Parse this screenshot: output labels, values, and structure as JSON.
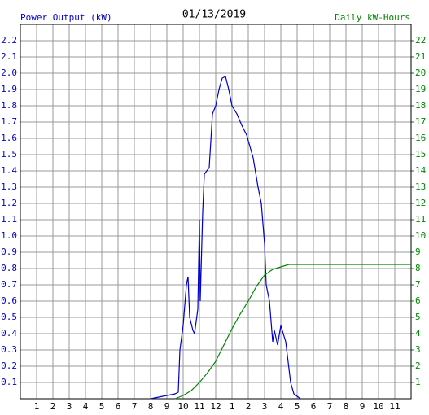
{
  "chart_data": {
    "type": "line",
    "title": "01/13/2019",
    "xlim": [
      0,
      24
    ],
    "xticks": [
      1,
      2,
      3,
      4,
      5,
      6,
      7,
      8,
      9,
      10,
      11,
      12,
      {
        "value": 13,
        "label": "1"
      },
      {
        "value": 14,
        "label": "2"
      },
      {
        "value": 15,
        "label": "3"
      },
      {
        "value": 16,
        "label": "4"
      },
      {
        "value": 17,
        "label": "5"
      },
      {
        "value": 18,
        "label": "6"
      },
      {
        "value": 19,
        "label": "7"
      },
      {
        "value": 20,
        "label": "8"
      },
      {
        "value": 21,
        "label": "9"
      },
      {
        "value": 22,
        "label": "10"
      },
      {
        "value": 23,
        "label": "11"
      }
    ],
    "ylim": [
      0,
      2.3
    ],
    "yticks": [
      0.1,
      0.2,
      0.3,
      0.4,
      0.5,
      0.6,
      0.7,
      0.8,
      0.9,
      {
        "value": 1,
        "label": "1.0"
      },
      1.1,
      1.2,
      1.3,
      1.4,
      1.5,
      1.6,
      1.7,
      1.8,
      1.9,
      {
        "value": 2,
        "label": "2.0"
      },
      2.1,
      2.2
    ],
    "y2lim": [
      0,
      23
    ],
    "y2ticks": [
      1,
      2,
      3,
      4,
      5,
      6,
      7,
      8,
      9,
      10,
      11,
      12,
      13,
      14,
      15,
      16,
      17,
      18,
      19,
      20,
      21,
      22
    ],
    "grid": true,
    "series": [
      {
        "name": "Power Output (kW)",
        "color": "#0000cc",
        "x": [
          8.0,
          8.5,
          9.0,
          9.5,
          9.7,
          9.8,
          10.0,
          10.2,
          10.3,
          10.4,
          10.6,
          10.7,
          10.9,
          11.0,
          11.05,
          11.2,
          11.3,
          11.6,
          11.8,
          12.0,
          12.2,
          12.4,
          12.6,
          12.8,
          13.0,
          13.3,
          13.6,
          13.9,
          14.1,
          14.3,
          14.6,
          14.8,
          15.0,
          15.1,
          15.3,
          15.5,
          15.6,
          15.8,
          16.0,
          16.3,
          16.6,
          16.8,
          17.2
        ],
        "values": [
          0,
          0.01,
          0.02,
          0.03,
          0.04,
          0.3,
          0.45,
          0.7,
          0.75,
          0.5,
          0.42,
          0.4,
          0.55,
          1.1,
          0.6,
          1.15,
          1.38,
          1.42,
          1.75,
          1.8,
          1.9,
          1.97,
          1.98,
          1.9,
          1.8,
          1.75,
          1.68,
          1.62,
          1.55,
          1.48,
          1.3,
          1.2,
          0.95,
          0.7,
          0.6,
          0.35,
          0.42,
          0.33,
          0.45,
          0.35,
          0.1,
          0.03,
          0
        ]
      },
      {
        "name": "Daily kW-Hours",
        "color": "#008800",
        "axis": "y2",
        "x": [
          9.5,
          10,
          10.5,
          11,
          11.5,
          12,
          12.5,
          13,
          13.5,
          14,
          14.5,
          15,
          15.5,
          16,
          16.5,
          24
        ],
        "values": [
          0,
          0.2,
          0.5,
          1.0,
          1.6,
          2.3,
          3.3,
          4.3,
          5.2,
          6.0,
          6.9,
          7.6,
          7.95,
          8.1,
          8.25,
          8.25
        ]
      }
    ]
  }
}
